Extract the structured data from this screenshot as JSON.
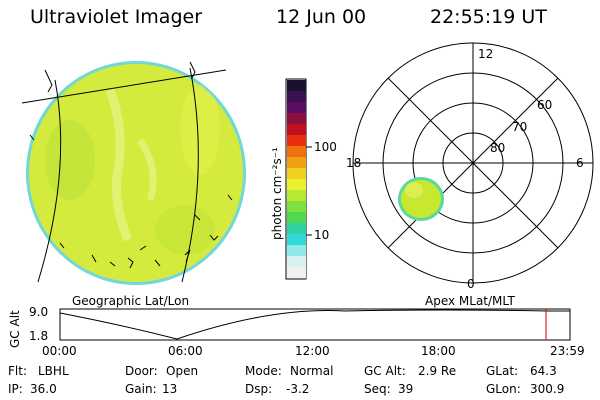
{
  "header": {
    "title": "Ultraviolet Imager",
    "date": "12 Jun 00",
    "time": "22:55:19 UT"
  },
  "colorbar": {
    "unit_label": "photon cm⁻²s⁻¹",
    "ticks": [
      "100",
      "10"
    ],
    "colors": [
      "#1a1030",
      "#3a1050",
      "#5a1060",
      "#8a1040",
      "#c01020",
      "#e83010",
      "#f07010",
      "#f0a010",
      "#f0d020",
      "#e8f030",
      "#b8e830",
      "#80e040",
      "#50d850",
      "#30d0a0",
      "#30d8d8",
      "#90e8e8",
      "#d8f0f0",
      "#f0f0f0"
    ]
  },
  "polar": {
    "mlt_labels": {
      "top": "12",
      "left": "18",
      "right": "6",
      "bottom": "0"
    },
    "lat_labels": [
      "60",
      "70",
      "80"
    ]
  },
  "map_labels": {
    "left": "Geographic Lat/Lon",
    "right": "Apex MLat/MLT"
  },
  "altitude_plot": {
    "ylabel": "GC Alt",
    "ymax": "9.0",
    "ymin": "1.8",
    "xticks": [
      "00:00",
      "06:00",
      "12:00",
      "18:00",
      "23:59"
    ],
    "marker_color": "#cc0000"
  },
  "status": {
    "row1": [
      {
        "key": "Flt:",
        "val": "LBHL"
      },
      {
        "key": "Door:",
        "val": "Open"
      },
      {
        "key": "Mode:",
        "val": "Normal"
      },
      {
        "key": "GC Alt:",
        "val": "2.9 Re"
      },
      {
        "key": "GLat:",
        "val": "64.3"
      }
    ],
    "row2": [
      {
        "key": "IP:",
        "val": "36.0"
      },
      {
        "key": "Gain:",
        "val": "13"
      },
      {
        "key": "Dsp:",
        "val": "-3.2"
      },
      {
        "key": "Seq:",
        "val": "39"
      },
      {
        "key": "GLon:",
        "val": "300.9"
      }
    ]
  },
  "colors": {
    "disk_fill": "#d6ec3a",
    "disk_edge": "#6ad8d8",
    "oval_fill": "#c8e830"
  }
}
